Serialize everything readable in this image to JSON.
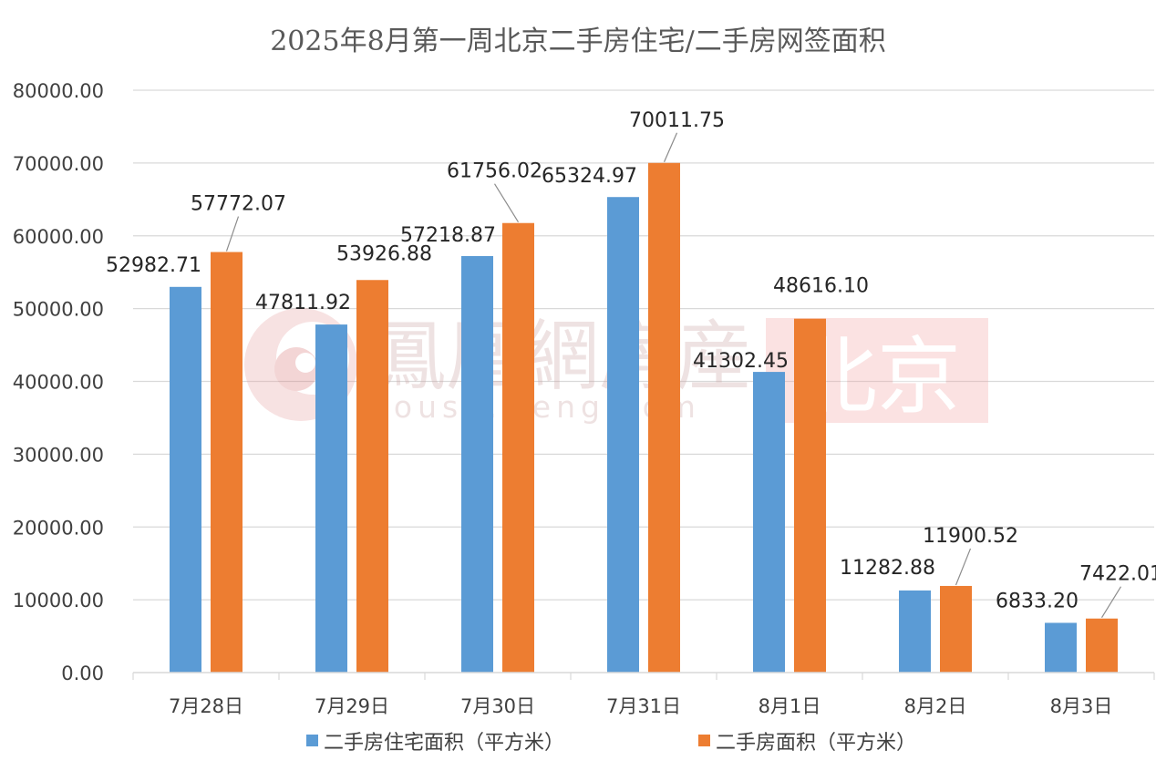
{
  "chart_data": {
    "type": "bar",
    "title": "2025年8月第一周北京二手房住宅/二手房网签面积",
    "categories": [
      "7月28日",
      "7月29日",
      "7月30日",
      "7月31日",
      "8月1日",
      "8月2日",
      "8月3日"
    ],
    "series": [
      {
        "name": "二手房住宅面积（平方米）",
        "color": "#5b9bd5",
        "values": [
          52982.71,
          47811.92,
          57218.87,
          65324.97,
          41302.45,
          11282.88,
          6833.2
        ],
        "labels": [
          "52982.71",
          "47811.92",
          "57218.87",
          "65324.97",
          "41302.45",
          "11282.88",
          "6833.20"
        ]
      },
      {
        "name": "二手房面积（平方米）",
        "color": "#ed7d31",
        "values": [
          57772.07,
          53926.88,
          61756.02,
          70011.75,
          48616.1,
          11900.52,
          7422.01
        ],
        "labels": [
          "57772.07",
          "53926.88",
          "61756.02",
          "70011.75",
          "48616.10",
          "11900.52",
          "7422.01"
        ]
      }
    ],
    "ylim": [
      0,
      80000
    ],
    "yticks": [
      "0.00",
      "10000.00",
      "20000.00",
      "30000.00",
      "40000.00",
      "50000.00",
      "60000.00",
      "70000.00",
      "80000.00"
    ],
    "grid": true,
    "legend": "bottom"
  },
  "watermark": {
    "brand_cn": "鳳凰網房産",
    "brand_url": "house.ifeng.com",
    "city": "北京",
    "logo_icon": "phoenix-swirl-icon"
  }
}
